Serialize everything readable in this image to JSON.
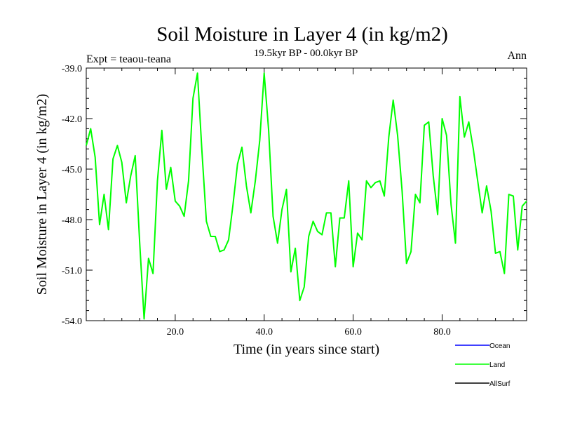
{
  "chart_data": {
    "type": "line",
    "title": "Soil Moisture in Layer 4 (in kg/m2)",
    "subtitle": "19.5kyr BP - 00.0kyr BP",
    "left_label": "Expt = teaou-teana",
    "right_label": "Ann",
    "xlabel": "Time (in years since start)",
    "ylabel": "Soil Moisture in Layer 4 (in kg/m2)",
    "xlim": [
      0,
      99
    ],
    "ylim": [
      -54.0,
      -39.0
    ],
    "xticks": [
      20,
      40,
      60,
      80
    ],
    "xtick_labels": [
      "20.0",
      "40.0",
      "60.0",
      "80.0"
    ],
    "yticks": [
      -54,
      -51,
      -48,
      -45,
      -42,
      -39
    ],
    "ytick_labels": [
      "-54.0",
      "-51.0",
      "-48.0",
      "-45.0",
      "-42.0",
      "-39.0"
    ],
    "legend": [
      {
        "name": "Ocean",
        "color": "#0000ff"
      },
      {
        "name": "Land",
        "color": "#00ff00"
      },
      {
        "name": "AllSurf",
        "color": "#000000"
      }
    ],
    "series": [
      {
        "name": "Land",
        "color": "#00ff00",
        "x": [
          0,
          1,
          2,
          3,
          4,
          5,
          6,
          7,
          8,
          9,
          10,
          11,
          12,
          13,
          14,
          15,
          16,
          17,
          18,
          19,
          20,
          21,
          22,
          23,
          24,
          25,
          26,
          27,
          28,
          29,
          30,
          31,
          32,
          33,
          34,
          35,
          36,
          37,
          38,
          39,
          40,
          41,
          42,
          43,
          44,
          45,
          46,
          47,
          48,
          49,
          50,
          51,
          52,
          53,
          54,
          55,
          56,
          57,
          58,
          59,
          60,
          61,
          62,
          63,
          64,
          65,
          66,
          67,
          68,
          69,
          70,
          71,
          72,
          73,
          74,
          75,
          76,
          77,
          78,
          79,
          80,
          81,
          82,
          83,
          84,
          85,
          86,
          87,
          88,
          89,
          90,
          91,
          92,
          93,
          94,
          95,
          96,
          97,
          98,
          99
        ],
        "y": [
          -43.6,
          -42.6,
          -44.3,
          -48.3,
          -46.5,
          -48.6,
          -44.4,
          -43.6,
          -44.6,
          -47.0,
          -45.4,
          -44.2,
          -49.3,
          -53.9,
          -50.3,
          -51.2,
          -45.7,
          -42.7,
          -46.2,
          -44.9,
          -46.9,
          -47.2,
          -47.8,
          -45.7,
          -40.8,
          -39.3,
          -43.9,
          -48.1,
          -49.0,
          -49.0,
          -49.9,
          -49.8,
          -49.2,
          -47.1,
          -44.7,
          -43.7,
          -46.0,
          -47.6,
          -45.7,
          -43.3,
          -39.3,
          -42.7,
          -47.8,
          -49.4,
          -47.4,
          -46.2,
          -51.1,
          -49.7,
          -52.8,
          -52.0,
          -49.0,
          -48.1,
          -48.7,
          -48.9,
          -47.6,
          -47.6,
          -50.8,
          -47.9,
          -47.9,
          -45.7,
          -50.8,
          -48.8,
          -49.2,
          -45.7,
          -46.1,
          -45.8,
          -45.7,
          -46.6,
          -43.1,
          -40.9,
          -43.0,
          -46.3,
          -50.6,
          -49.9,
          -46.5,
          -47.0,
          -42.4,
          -42.2,
          -45.4,
          -47.7,
          -42.0,
          -43.0,
          -47.1,
          -49.4,
          -40.7,
          -43.1,
          -42.2,
          -43.8,
          -45.7,
          -47.6,
          -46.0,
          -47.5,
          -50.0,
          -49.9,
          -51.2,
          -46.5,
          -46.6,
          -49.8,
          -47.2,
          -46.9
        ]
      }
    ]
  }
}
